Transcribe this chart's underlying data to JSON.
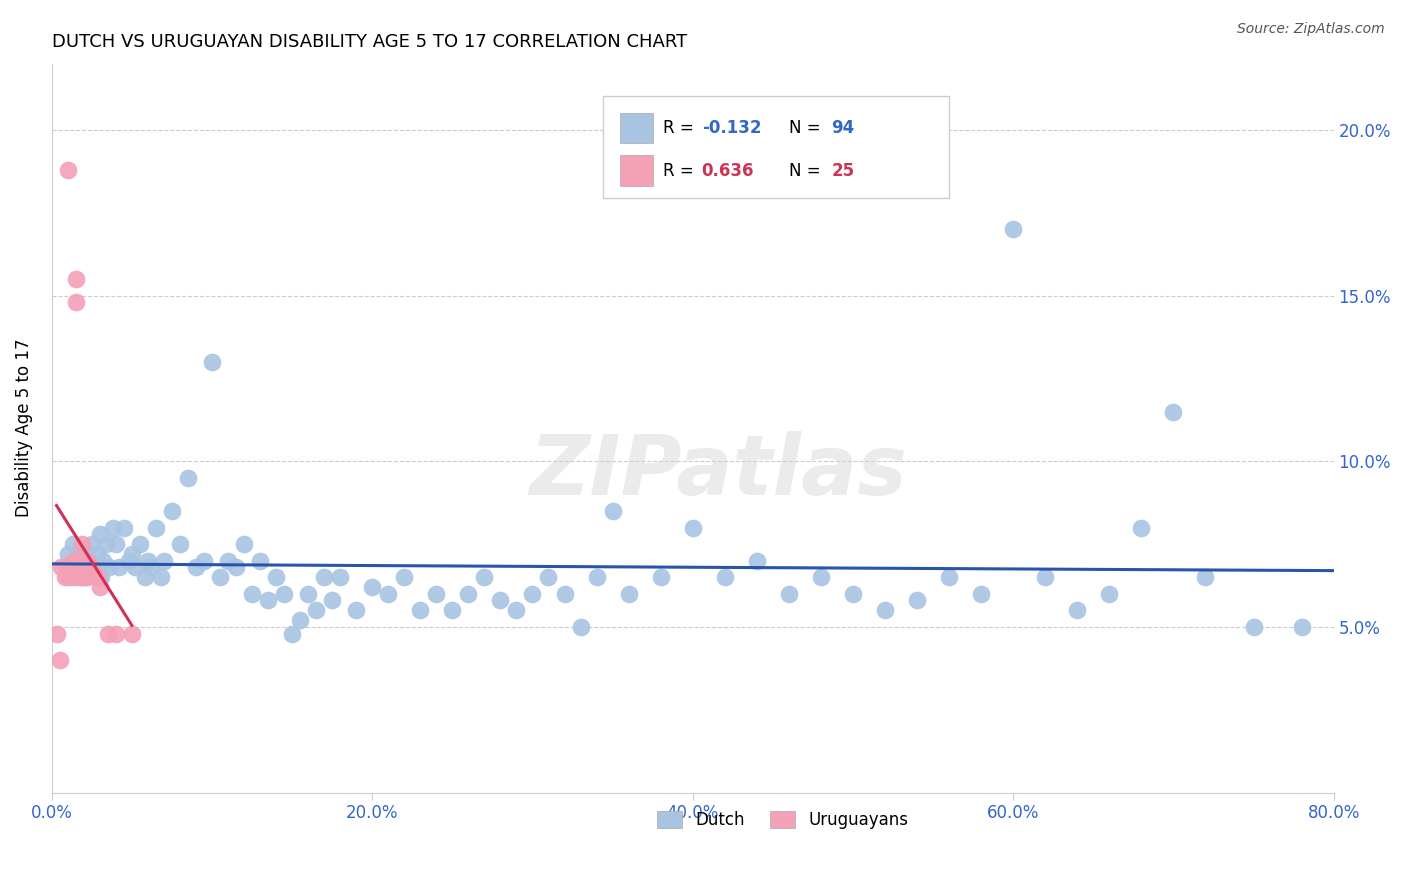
{
  "title": "DUTCH VS URUGUAYAN DISABILITY AGE 5 TO 17 CORRELATION CHART",
  "source": "Source: ZipAtlas.com",
  "ylabel": "Disability Age 5 to 17",
  "xlim": [
    0.0,
    0.8
  ],
  "ylim": [
    0.0,
    0.22
  ],
  "x_ticks": [
    0.0,
    0.2,
    0.4,
    0.6,
    0.8
  ],
  "x_tick_labels": [
    "0.0%",
    "20.0%",
    "40.0%",
    "60.0%",
    "80.0%"
  ],
  "y_ticks": [
    0.05,
    0.1,
    0.15,
    0.2
  ],
  "y_tick_labels": [
    "5.0%",
    "10.0%",
    "15.0%",
    "20.0%"
  ],
  "dutch_color": "#a8c4e2",
  "uruguayan_color": "#f4a0b5",
  "trend_dutch_color": "#2855aa",
  "trend_uruguayan_color": "#d03055",
  "R_dutch": -0.132,
  "N_dutch": 94,
  "R_uruguayan": 0.636,
  "N_uruguayan": 25,
  "watermark": "ZIPatlas",
  "dutch_x": [
    0.01,
    0.012,
    0.013,
    0.015,
    0.016,
    0.017,
    0.018,
    0.019,
    0.02,
    0.021,
    0.022,
    0.023,
    0.025,
    0.026,
    0.028,
    0.03,
    0.031,
    0.032,
    0.034,
    0.036,
    0.038,
    0.04,
    0.042,
    0.045,
    0.048,
    0.05,
    0.052,
    0.055,
    0.058,
    0.06,
    0.062,
    0.065,
    0.068,
    0.07,
    0.075,
    0.08,
    0.085,
    0.09,
    0.095,
    0.1,
    0.105,
    0.11,
    0.115,
    0.12,
    0.125,
    0.13,
    0.135,
    0.14,
    0.145,
    0.15,
    0.155,
    0.16,
    0.165,
    0.17,
    0.175,
    0.18,
    0.19,
    0.2,
    0.21,
    0.22,
    0.23,
    0.24,
    0.25,
    0.26,
    0.27,
    0.28,
    0.29,
    0.3,
    0.31,
    0.32,
    0.33,
    0.34,
    0.35,
    0.36,
    0.38,
    0.4,
    0.42,
    0.44,
    0.46,
    0.48,
    0.5,
    0.52,
    0.54,
    0.56,
    0.58,
    0.6,
    0.62,
    0.64,
    0.66,
    0.68,
    0.7,
    0.72,
    0.75,
    0.78
  ],
  "dutch_y": [
    0.072,
    0.068,
    0.075,
    0.07,
    0.068,
    0.072,
    0.065,
    0.07,
    0.068,
    0.072,
    0.065,
    0.07,
    0.075,
    0.068,
    0.072,
    0.078,
    0.065,
    0.07,
    0.075,
    0.068,
    0.08,
    0.075,
    0.068,
    0.08,
    0.07,
    0.072,
    0.068,
    0.075,
    0.065,
    0.07,
    0.068,
    0.08,
    0.065,
    0.07,
    0.085,
    0.075,
    0.095,
    0.068,
    0.07,
    0.13,
    0.065,
    0.07,
    0.068,
    0.075,
    0.06,
    0.07,
    0.058,
    0.065,
    0.06,
    0.048,
    0.052,
    0.06,
    0.055,
    0.065,
    0.058,
    0.065,
    0.055,
    0.062,
    0.06,
    0.065,
    0.055,
    0.06,
    0.055,
    0.06,
    0.065,
    0.058,
    0.055,
    0.06,
    0.065,
    0.06,
    0.05,
    0.065,
    0.085,
    0.06,
    0.065,
    0.08,
    0.065,
    0.07,
    0.06,
    0.065,
    0.06,
    0.055,
    0.058,
    0.065,
    0.06,
    0.17,
    0.065,
    0.055,
    0.06,
    0.08,
    0.115,
    0.065,
    0.05,
    0.05
  ],
  "uruguayan_x": [
    0.003,
    0.005,
    0.006,
    0.008,
    0.009,
    0.01,
    0.011,
    0.012,
    0.013,
    0.014,
    0.015,
    0.015,
    0.016,
    0.017,
    0.018,
    0.019,
    0.02,
    0.021,
    0.022,
    0.025,
    0.028,
    0.03,
    0.035,
    0.04,
    0.05
  ],
  "uruguayan_y": [
    0.048,
    0.04,
    0.068,
    0.065,
    0.068,
    0.188,
    0.065,
    0.068,
    0.07,
    0.065,
    0.148,
    0.155,
    0.068,
    0.07,
    0.065,
    0.075,
    0.068,
    0.065,
    0.07,
    0.068,
    0.065,
    0.062,
    0.048,
    0.048,
    0.048
  ]
}
